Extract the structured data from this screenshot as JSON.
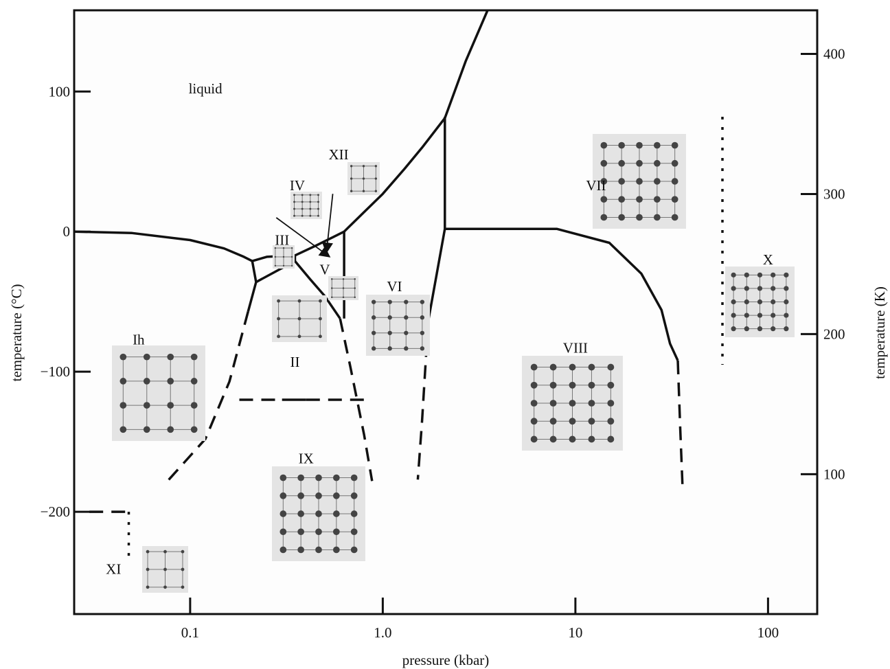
{
  "chart_data": {
    "type": "line",
    "xlabel": "pressure (kbar)",
    "ylabel": "temperature (°C)",
    "ylabel_right": "temperature (K)",
    "x_scale": "log",
    "xlim": [
      0.025,
      180
    ],
    "ylim": [
      -273,
      158
    ],
    "x_ticks": [
      {
        "value": 0.1,
        "label": "0.1"
      },
      {
        "value": 1.0,
        "label": "1.0"
      },
      {
        "value": 10,
        "label": "10"
      },
      {
        "value": 100,
        "label": "100"
      }
    ],
    "y_ticks": [
      {
        "value": 100,
        "label": "100"
      },
      {
        "value": 0,
        "label": "0"
      },
      {
        "value": -100,
        "label": "−100"
      },
      {
        "value": -200,
        "label": "−200"
      }
    ],
    "y_ticks_right": [
      {
        "value": 400,
        "label": "400"
      },
      {
        "value": 300,
        "label": "300"
      },
      {
        "value": 200,
        "label": "200"
      },
      {
        "value": 100,
        "label": "100"
      }
    ],
    "grid": false,
    "phases": [
      {
        "name": "liquid",
        "x": 0.12,
        "y": 102
      },
      {
        "name": "XII",
        "x": 0.59,
        "y": 55
      },
      {
        "name": "IV",
        "x": 0.36,
        "y": 33
      },
      {
        "name": "III",
        "x": 0.3,
        "y": -6
      },
      {
        "name": "V",
        "x": 0.5,
        "y": -27
      },
      {
        "name": "VI",
        "x": 1.15,
        "y": -39
      },
      {
        "name": "II",
        "x": 0.35,
        "y": -93
      },
      {
        "name": "Ih",
        "x": 0.054,
        "y": -77
      },
      {
        "name": "VII",
        "x": 12.8,
        "y": 33
      },
      {
        "name": "X",
        "x": 100,
        "y": -20
      },
      {
        "name": "VIII",
        "x": 10,
        "y": -83
      },
      {
        "name": "IX",
        "x": 0.4,
        "y": -162
      },
      {
        "name": "XI",
        "x": 0.04,
        "y": -241
      }
    ],
    "series": [
      {
        "style": "solid",
        "x": [
          0.025,
          0.05,
          0.1,
          0.15,
          0.19,
          0.21
        ],
        "y": [
          0,
          -1,
          -6,
          -12,
          -18,
          -21
        ]
      },
      {
        "style": "solid",
        "x": [
          0.21,
          0.25,
          0.35
        ],
        "y": [
          -21,
          -18,
          -17
        ]
      },
      {
        "style": "solid",
        "x": [
          0.35,
          0.45,
          0.55,
          0.63,
          0.8,
          1.0,
          1.3,
          1.6,
          2.1,
          2.7,
          3.5
        ],
        "y": [
          -17,
          -10,
          -4,
          0,
          14,
          27,
          45,
          60,
          81,
          122,
          158
        ]
      },
      {
        "style": "solid",
        "x": [
          0.21,
          0.22,
          0.35
        ],
        "y": [
          -21,
          -36,
          -21
        ]
      },
      {
        "style": "solid",
        "x": [
          0.35,
          0.35
        ],
        "y": [
          -21,
          -17
        ]
      },
      {
        "style": "solid",
        "x": [
          0.35,
          0.42,
          0.5,
          0.6
        ],
        "y": [
          -21,
          -34,
          -46,
          -62
        ]
      },
      {
        "style": "solid",
        "x": [
          0.22,
          0.2
        ],
        "y": [
          -36,
          -57
        ]
      },
      {
        "style": "solid",
        "x": [
          0.63,
          0.63
        ],
        "y": [
          0,
          -62
        ]
      },
      {
        "style": "solid",
        "x": [
          2.1,
          2.1
        ],
        "y": [
          82,
          2
        ]
      },
      {
        "style": "solid",
        "x": [
          2.1,
          1.72
        ],
        "y": [
          2,
          -64
        ]
      },
      {
        "style": "solid",
        "x": [
          2.1,
          8,
          15,
          22,
          28,
          31,
          34
        ],
        "y": [
          2,
          2,
          -8,
          -30,
          -56,
          -80,
          -92
        ]
      },
      {
        "style": "solid",
        "x": [
          0.3,
          0.4
        ],
        "y": [
          -120,
          -120
        ]
      },
      {
        "style": "dashed",
        "x": [
          0.2,
          0.16,
          0.12,
          0.073
        ],
        "y": [
          -57,
          -107,
          -148,
          -181
        ]
      },
      {
        "style": "dashed",
        "x": [
          0.6,
          0.68,
          0.8,
          0.88
        ],
        "y": [
          -62,
          -97,
          -145,
          -178
        ]
      },
      {
        "style": "dashed",
        "x": [
          1.72,
          1.6,
          1.52
        ],
        "y": [
          -64,
          -135,
          -177
        ]
      },
      {
        "style": "dashed",
        "x": [
          34,
          35,
          36
        ],
        "y": [
          -92,
          -140,
          -182
        ]
      },
      {
        "style": "dashed",
        "x": [
          0.18,
          0.3
        ],
        "y": [
          -120,
          -120
        ]
      },
      {
        "style": "dashed",
        "x": [
          0.4,
          0.8
        ],
        "y": [
          -120,
          -120
        ]
      },
      {
        "style": "dashed",
        "x": [
          0.03,
          0.048
        ],
        "y": [
          -200,
          -200
        ]
      },
      {
        "style": "dotted",
        "x": [
          0.048,
          0.048
        ],
        "y": [
          -200,
          -232
        ]
      },
      {
        "style": "dotted",
        "x": [
          58,
          58
        ],
        "y": [
          82,
          -95
        ]
      }
    ],
    "arrows": [
      {
        "from": [
          0.28,
          10
        ],
        "to": [
          0.53,
          -18
        ]
      },
      {
        "from": [
          0.55,
          27
        ],
        "to": [
          0.51,
          -15
        ]
      }
    ]
  }
}
